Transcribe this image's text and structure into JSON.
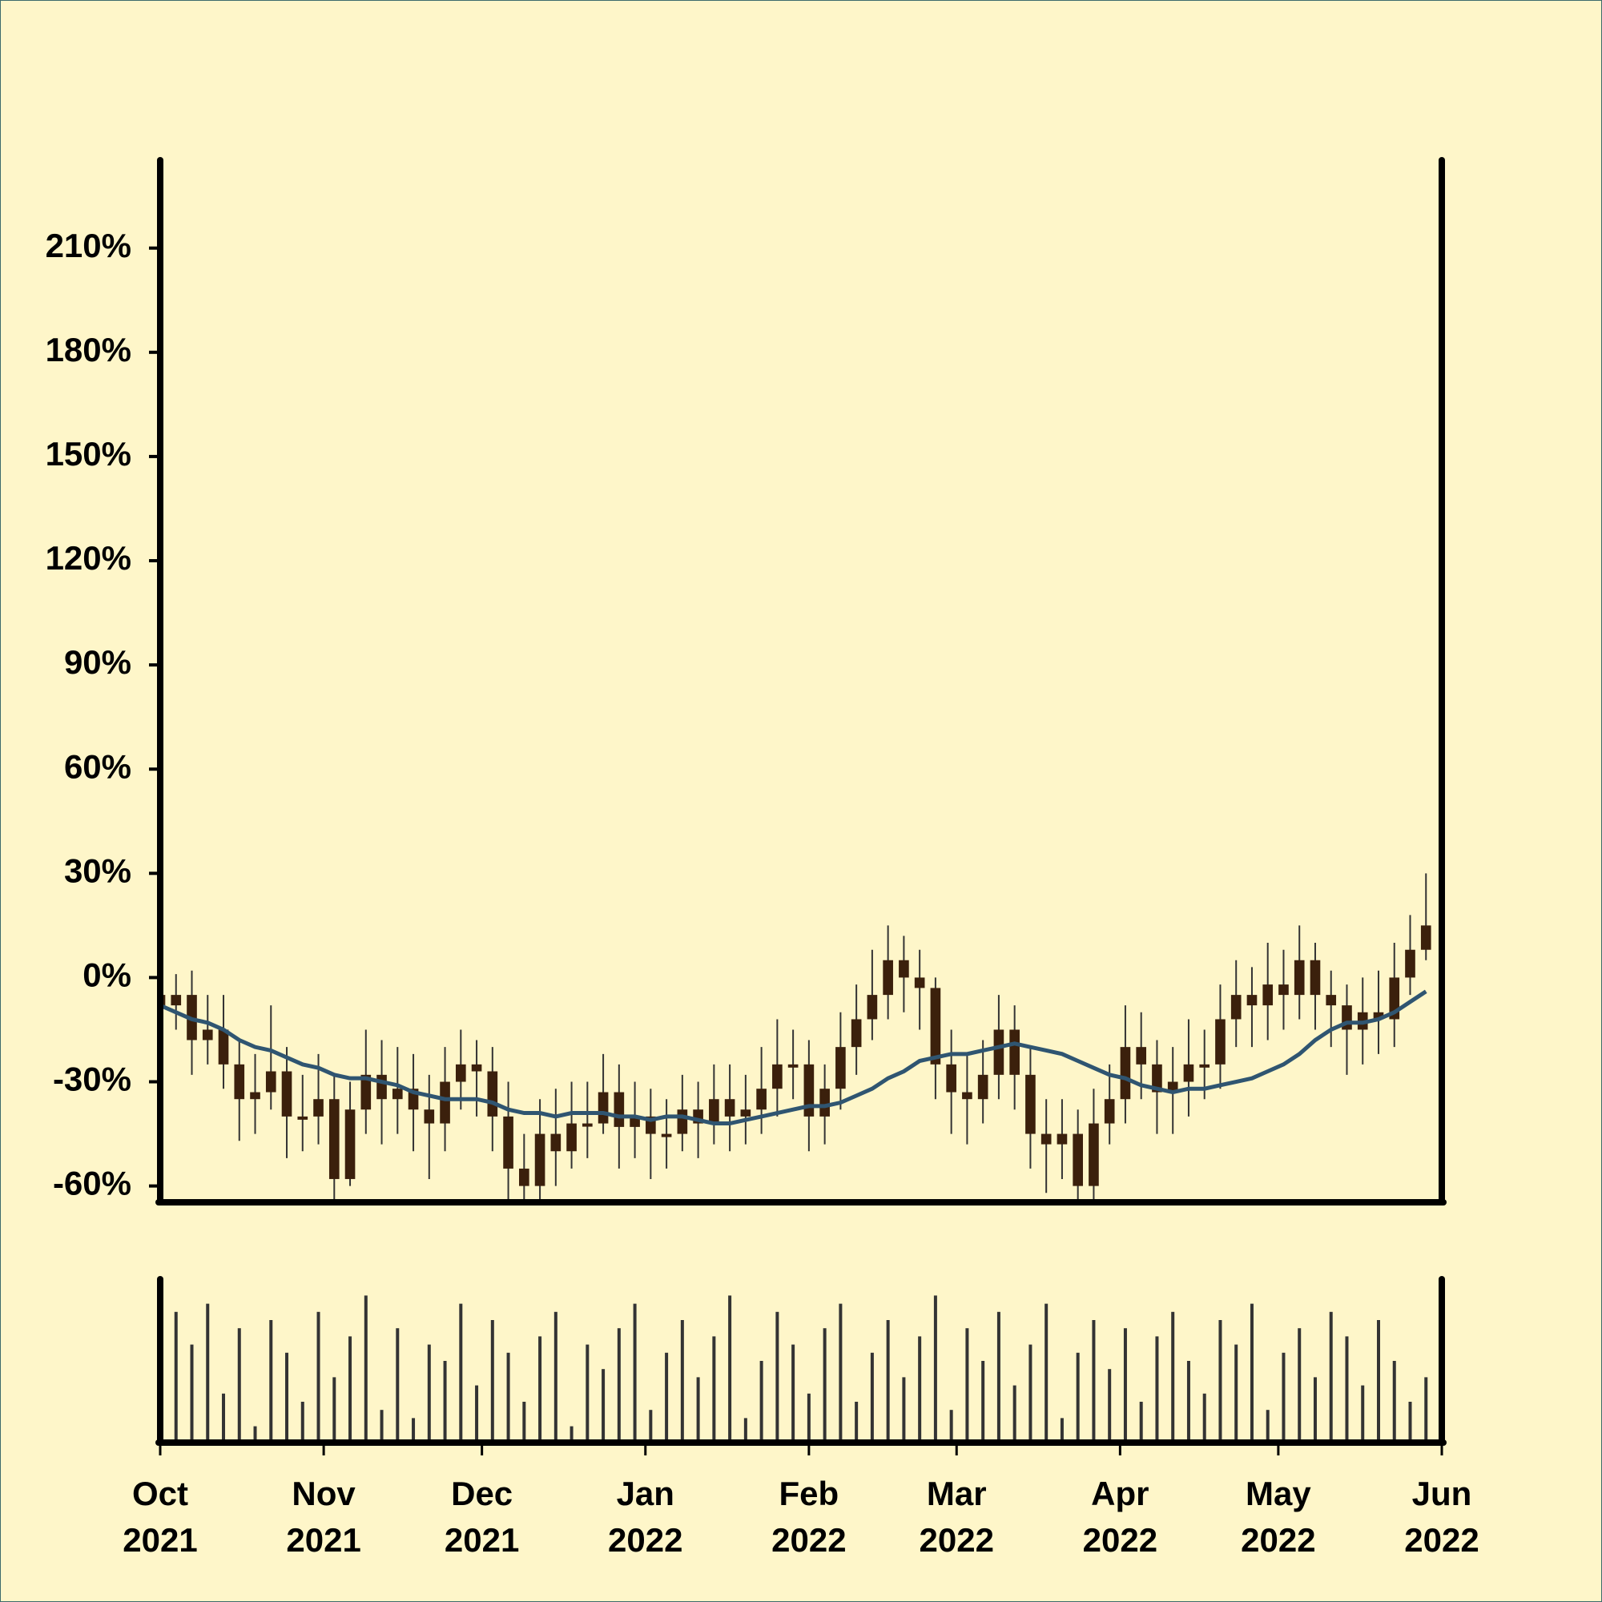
{
  "chart_data": {
    "type": "candlestick",
    "x": [
      0,
      3,
      6,
      9,
      12,
      15,
      18,
      21,
      24,
      27,
      30,
      33,
      36,
      39,
      42,
      45,
      48,
      51,
      54,
      57,
      60,
      63,
      66,
      69,
      72,
      75,
      78,
      81,
      84,
      87,
      90,
      93,
      96,
      99,
      102,
      105,
      108,
      111,
      114,
      117,
      120,
      123,
      126,
      129,
      132,
      135,
      138,
      141,
      144,
      147,
      150,
      153,
      156,
      159,
      162,
      165,
      168,
      171,
      174,
      177,
      180,
      183,
      186,
      189,
      192,
      195,
      198,
      201,
      204,
      207,
      210,
      213,
      216,
      219,
      222,
      225,
      228,
      231,
      234,
      237,
      240
    ],
    "open": [
      -5,
      -8,
      -5,
      -18,
      -15,
      -25,
      -35,
      -33,
      -27,
      -40,
      -40,
      -35,
      -58,
      -38,
      -28,
      -35,
      -32,
      -38,
      -42,
      -30,
      -25,
      -27,
      -40,
      -55,
      -60,
      -45,
      -50,
      -42,
      -42,
      -33,
      -43,
      -40,
      -45,
      -45,
      -38,
      -42,
      -35,
      -40,
      -38,
      -32,
      -25,
      -25,
      -40,
      -32,
      -20,
      -12,
      -5,
      5,
      0,
      -3,
      -25,
      -33,
      -35,
      -28,
      -15,
      -28,
      -45,
      -48,
      -45,
      -60,
      -42,
      -35,
      -20,
      -25,
      -33,
      -30,
      -25,
      -25,
      -12,
      -5,
      -8,
      -2,
      -5,
      5,
      -5,
      -8,
      -15,
      -10,
      -12,
      0,
      8
    ],
    "high": [
      3,
      1,
      2,
      -5,
      -5,
      -18,
      -22,
      -8,
      -20,
      -28,
      -22,
      -28,
      -30,
      -15,
      -18,
      -20,
      -22,
      -28,
      -20,
      -15,
      -18,
      -20,
      -30,
      -45,
      -35,
      -32,
      -30,
      -30,
      -22,
      -25,
      -30,
      -32,
      -35,
      -28,
      -30,
      -25,
      -25,
      -28,
      -20,
      -12,
      -15,
      -18,
      -25,
      -10,
      -2,
      8,
      15,
      12,
      8,
      0,
      -15,
      -22,
      -18,
      -5,
      -8,
      -20,
      -35,
      -35,
      -38,
      -32,
      -25,
      -8,
      -10,
      -18,
      -20,
      -12,
      -15,
      -2,
      5,
      3,
      10,
      8,
      15,
      10,
      2,
      -2,
      0,
      2,
      10,
      18,
      30
    ],
    "low": [
      -20,
      -15,
      -28,
      -25,
      -32,
      -47,
      -45,
      -38,
      -52,
      -50,
      -48,
      -70,
      -60,
      -45,
      -48,
      -45,
      -50,
      -58,
      -50,
      -38,
      -40,
      -50,
      -64,
      -72,
      -65,
      -60,
      -55,
      -52,
      -45,
      -55,
      -52,
      -58,
      -55,
      -50,
      -52,
      -48,
      -50,
      -48,
      -45,
      -40,
      -35,
      -50,
      -48,
      -38,
      -28,
      -18,
      -12,
      -10,
      -15,
      -35,
      -45,
      -48,
      -42,
      -35,
      -38,
      -55,
      -62,
      -58,
      -72,
      -68,
      -48,
      -42,
      -35,
      -45,
      -45,
      -40,
      -35,
      -32,
      -20,
      -20,
      -18,
      -15,
      -12,
      -15,
      -20,
      -28,
      -25,
      -22,
      -20,
      -5,
      5
    ],
    "close": [
      -8,
      -5,
      -18,
      -15,
      -25,
      -35,
      -33,
      -27,
      -40,
      -40,
      -35,
      -58,
      -38,
      -28,
      -35,
      -32,
      -38,
      -42,
      -30,
      -25,
      -27,
      -40,
      -55,
      -60,
      -45,
      -50,
      -42,
      -42,
      -33,
      -43,
      -40,
      -45,
      -45,
      -38,
      -42,
      -35,
      -40,
      -38,
      -32,
      -25,
      -25,
      -40,
      -32,
      -20,
      -12,
      -5,
      5,
      0,
      -3,
      -25,
      -33,
      -35,
      -28,
      -15,
      -28,
      -45,
      -48,
      -45,
      -60,
      -42,
      -35,
      -20,
      -25,
      -33,
      -30,
      -25,
      -25,
      -12,
      -5,
      -8,
      -2,
      -5,
      5,
      -5,
      -8,
      -15,
      -10,
      -12,
      0,
      8,
      15
    ],
    "ma": [
      -8,
      -10,
      -12,
      -13,
      -15,
      -18,
      -20,
      -21,
      -23,
      -25,
      -26,
      -28,
      -29,
      -29,
      -30,
      -31,
      -33,
      -34,
      -35,
      -35,
      -35,
      -36,
      -38,
      -39,
      -39,
      -40,
      -39,
      -39,
      -39,
      -40,
      -40,
      -41,
      -40,
      -40,
      -41,
      -42,
      -42,
      -41,
      -40,
      -39,
      -38,
      -37,
      -37,
      -36,
      -34,
      -32,
      -29,
      -27,
      -24,
      -23,
      -22,
      -22,
      -21,
      -20,
      -19,
      -20,
      -21,
      -22,
      -24,
      -26,
      -28,
      -29,
      -31,
      -32,
      -33,
      -32,
      -32,
      -31,
      -30,
      -29,
      -27,
      -25,
      -22,
      -18,
      -15,
      -13,
      -13,
      -12,
      -10,
      -7,
      -4
    ],
    "volume": [
      45,
      80,
      60,
      85,
      30,
      70,
      10,
      75,
      55,
      25,
      80,
      40,
      65,
      90,
      20,
      70,
      15,
      60,
      50,
      85,
      35,
      75,
      55,
      25,
      65,
      80,
      10,
      60,
      45,
      70,
      85,
      20,
      55,
      75,
      40,
      65,
      90,
      15,
      50,
      80,
      60,
      30,
      70,
      85,
      25,
      55,
      75,
      40,
      65,
      90,
      20,
      70,
      50,
      80,
      35,
      60,
      85,
      15,
      55,
      75,
      45,
      70,
      25,
      65,
      80,
      50,
      30,
      75,
      60,
      85,
      20,
      55,
      70,
      40,
      80,
      65,
      35,
      75,
      50,
      25,
      40
    ],
    "candle_color": "#3b200c",
    "wick_color": "#333333",
    "ma_color": "#2f5571",
    "volume_color": "#333333",
    "xlim": [
      0,
      243
    ],
    "xticks": [
      {
        "value": 0,
        "label": "Oct 2021"
      },
      {
        "value": 31,
        "label": "Nov 2021"
      },
      {
        "value": 61,
        "label": "Dec 2021"
      },
      {
        "value": 92,
        "label": "Jan 2022"
      },
      {
        "value": 123,
        "label": "Feb 2022"
      },
      {
        "value": 151,
        "label": "Mar 2022"
      },
      {
        "value": 182,
        "label": "Apr 2022"
      },
      {
        "value": 212,
        "label": "May 2022"
      },
      {
        "value": 243,
        "label": "Jun 2022"
      }
    ],
    "ylim": [
      -64.7,
      235.3
    ],
    "yticks": [
      {
        "value": -60,
        "label": "-60%"
      },
      {
        "value": -30,
        "label": "-30%"
      },
      {
        "value": 0,
        "label": "0%"
      },
      {
        "value": 30,
        "label": "30%"
      },
      {
        "value": 60,
        "label": "60%"
      },
      {
        "value": 90,
        "label": "90%"
      },
      {
        "value": 120,
        "label": "120%"
      },
      {
        "value": 150,
        "label": "150%"
      },
      {
        "value": 180,
        "label": "180%"
      },
      {
        "value": 210,
        "label": "210%"
      }
    ],
    "volume_ylim": [
      0,
      100
    ]
  }
}
